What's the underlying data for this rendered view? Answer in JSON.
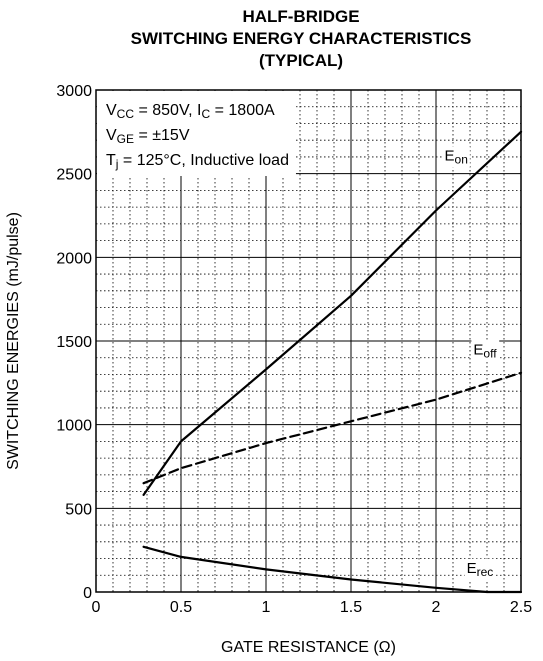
{
  "chart_data": {
    "type": "line",
    "title_lines": [
      "HALF-BRIDGE",
      "SWITCHING ENERGY CHARACTERISTICS",
      "(TYPICAL)"
    ],
    "xlabel": "GATE RESISTANCE (Ω)",
    "ylabel": "SWITCHING ENERGIES (mJ/pulse)",
    "xlim": [
      0,
      2.5
    ],
    "ylim": [
      0,
      3000
    ],
    "x_ticks": [
      0,
      0.5,
      1,
      1.5,
      2,
      2.5
    ],
    "x_tick_labels": [
      "0",
      "0.5",
      "1",
      "1.5",
      "2",
      "2.5"
    ],
    "y_ticks": [
      0,
      500,
      1000,
      1500,
      2000,
      2500,
      3000
    ],
    "y_tick_labels": [
      "0",
      "500",
      "1000",
      "1500",
      "2000",
      "2500",
      "3000"
    ],
    "grid": "major solid, minor dotted",
    "annotations": [
      "VCC = 850V, IC = 1800A",
      "VGE = ±15V",
      "Tj = 125°C, Inductive load"
    ],
    "series": [
      {
        "name": "Eon",
        "style": "solid",
        "x": [
          0.28,
          0.5,
          1.0,
          1.5,
          2.0,
          2.5
        ],
        "y": [
          580,
          900,
          1330,
          1770,
          2280,
          2750
        ]
      },
      {
        "name": "Eoff",
        "style": "dashed",
        "x": [
          0.28,
          0.5,
          1.0,
          1.5,
          2.0,
          2.5
        ],
        "y": [
          650,
          740,
          890,
          1020,
          1150,
          1310
        ]
      },
      {
        "name": "Erec",
        "style": "solid",
        "x": [
          0.28,
          0.5,
          1.0,
          1.5,
          2.0,
          2.3,
          2.5
        ],
        "y": [
          270,
          210,
          135,
          75,
          25,
          0,
          0
        ]
      }
    ]
  }
}
